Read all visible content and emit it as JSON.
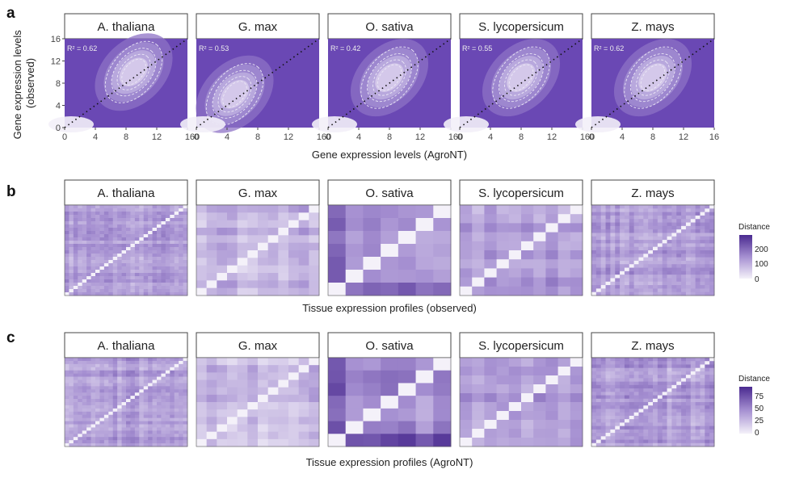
{
  "panel_letters": {
    "a": "a",
    "b": "b",
    "c": "c"
  },
  "species": [
    "A. thaliana",
    "G. max",
    "O. sativa",
    "S. lycopersicum",
    "Z. mays"
  ],
  "colors": {
    "low": "#f2eff8",
    "mid": "#a793d2",
    "high": "#4b2a93",
    "bg_dense": "#7a5cbf",
    "contour": "#e6e1f3",
    "diag": "#111111"
  },
  "chart_data": [
    {
      "id": "a",
      "type": "scatter",
      "subtype": "2d-density with contours",
      "facets": [
        "A. thaliana",
        "G. max",
        "O. sativa",
        "S. lycopersicum",
        "Z. mays"
      ],
      "xlabel": "Gene expression levels (AgroNT)",
      "ylabel": "Gene expression levels\n(observed)",
      "ylabel_lines": [
        "Gene expression levels",
        "(observed)"
      ],
      "xlim": [
        0,
        16
      ],
      "ylim": [
        0,
        16
      ],
      "x_ticks": [
        "0",
        "4",
        "8",
        "12",
        "16"
      ],
      "x_ticks_last_overlap": "160",
      "y_ticks": [
        "0",
        "4",
        "8",
        "12",
        "16"
      ],
      "r2_labels": [
        "R² = 0.62",
        "R² = 0.53",
        "R² = 0.42",
        "R² = 0.55",
        "R² = 0.62"
      ],
      "r2_values": [
        0.62,
        0.53,
        0.42,
        0.55,
        0.62
      ],
      "density_centers": [
        {
          "x": 9,
          "y": 10
        },
        {
          "x": 5,
          "y": 6
        },
        {
          "x": 8,
          "y": 9
        },
        {
          "x": 8,
          "y": 9
        },
        {
          "x": 8,
          "y": 9
        }
      ],
      "diagonal": "y = x"
    },
    {
      "id": "b",
      "type": "heatmap",
      "facets": [
        "A. thaliana",
        "G. max",
        "O. sativa",
        "S. lycopersicum",
        "Z. mays"
      ],
      "xlabel": "Tissue expression profiles (observed)",
      "legend": {
        "title": "Distance",
        "ticks": [
          "200",
          "100",
          "0"
        ],
        "range": [
          0,
          250
        ]
      },
      "grid_sizes": [
        28,
        12,
        7,
        10,
        26
      ]
    },
    {
      "id": "c",
      "type": "heatmap",
      "facets": [
        "A. thaliana",
        "G. max",
        "O. sativa",
        "S. lycopersicum",
        "Z. mays"
      ],
      "xlabel": "Tissue expression profiles (AgroNT)",
      "legend": {
        "title": "Distance",
        "ticks": [
          "75",
          "50",
          "25",
          "0"
        ],
        "range": [
          0,
          90
        ]
      },
      "grid_sizes": [
        28,
        12,
        7,
        10,
        26
      ]
    }
  ]
}
